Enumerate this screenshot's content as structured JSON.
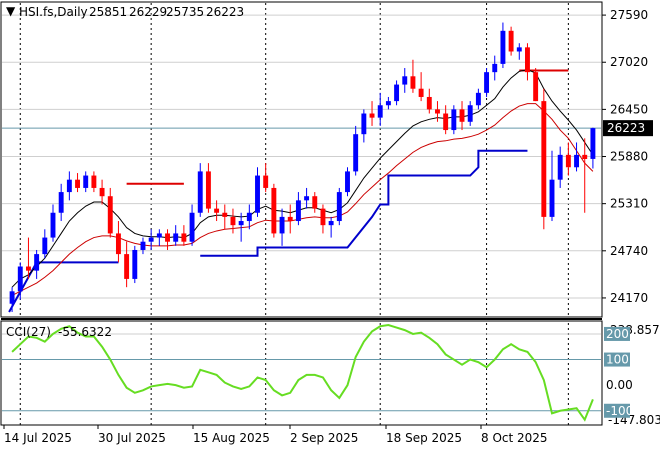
{
  "header": {
    "marker": "▼",
    "symbol": "HSI.fs,Daily",
    "open": "25851",
    "high": "26229",
    "low": "25735",
    "close": "26223"
  },
  "indicator": {
    "label": "CCI(27)",
    "value": "-55.6322",
    "upper_scale": "238.8572",
    "lower_scale": "-147.8038",
    "ticks": [
      {
        "label": "200",
        "boxed": true
      },
      {
        "label": "100",
        "boxed": true
      },
      {
        "label": "0.00",
        "boxed": false
      },
      {
        "label": "-100",
        "boxed": true
      }
    ]
  },
  "price_axis": {
    "ticks": [
      "27590",
      "27020",
      "26450",
      "25880",
      "25310",
      "24740",
      "24170"
    ],
    "current": "26223"
  },
  "date_axis": [
    "14 Jul 2025",
    "30 Jul 2025",
    "15 Aug 2025",
    "2 Sep 2025",
    "18 Sep 2025",
    "8 Oct 2025"
  ],
  "colors": {
    "bull": "#0000ff",
    "bear": "#ff0000",
    "ema_fast": "#000000",
    "ema_slow": "#cc0000",
    "support": "#0000cc",
    "resistance": "#dd0000",
    "cci": "#66dd22",
    "current_line": "#6699aa",
    "label_bg": "#000000"
  },
  "chart_data": [
    {
      "type": "candlestick",
      "title": "HSI.fs,Daily",
      "ylim": [
        24000,
        27700
      ],
      "y_ticks": [
        27590,
        27020,
        26450,
        25880,
        25310,
        24740,
        24170
      ],
      "current_price": 26223,
      "candles": [
        [
          24100,
          24300,
          24000,
          24250
        ],
        [
          24250,
          24600,
          24150,
          24550
        ],
        [
          24550,
          24900,
          24400,
          24500
        ],
        [
          24500,
          24750,
          24400,
          24700
        ],
        [
          24700,
          25000,
          24650,
          24900
        ],
        [
          24900,
          25300,
          24850,
          25200
        ],
        [
          25200,
          25550,
          25100,
          25450
        ],
        [
          25450,
          25700,
          25350,
          25600
        ],
        [
          25600,
          25680,
          25450,
          25500
        ],
        [
          25500,
          25700,
          25450,
          25650
        ],
        [
          25650,
          25700,
          25450,
          25500
        ],
        [
          25500,
          25600,
          25300,
          25400
        ],
        [
          25400,
          25500,
          24900,
          24950
        ],
        [
          24950,
          25100,
          24600,
          24700
        ],
        [
          24700,
          24850,
          24300,
          24400
        ],
        [
          24400,
          24800,
          24350,
          24750
        ],
        [
          24750,
          24900,
          24700,
          24850
        ],
        [
          24850,
          25000,
          24750,
          24900
        ],
        [
          24900,
          25000,
          24800,
          24950
        ],
        [
          24950,
          25000,
          24750,
          24850
        ],
        [
          24850,
          25050,
          24800,
          24950
        ],
        [
          24950,
          25050,
          24800,
          24850
        ],
        [
          24850,
          25300,
          24800,
          25200
        ],
        [
          25200,
          25800,
          25150,
          25700
        ],
        [
          25700,
          25800,
          25200,
          25250
        ],
        [
          25250,
          25350,
          25100,
          25200
        ],
        [
          25200,
          25300,
          25000,
          25150
        ],
        [
          25150,
          25250,
          24950,
          25050
        ],
        [
          25050,
          25200,
          24850,
          25100
        ],
        [
          25100,
          25300,
          25000,
          25200
        ],
        [
          25200,
          25750,
          25150,
          25650
        ],
        [
          25650,
          25800,
          25450,
          25500
        ],
        [
          25500,
          25550,
          24900,
          24950
        ],
        [
          24950,
          25250,
          24800,
          25150
        ],
        [
          25150,
          25300,
          24950,
          25100
        ],
        [
          25100,
          25450,
          25050,
          25350
        ],
        [
          25350,
          25500,
          25250,
          25400
        ],
        [
          25400,
          25450,
          25200,
          25250
        ],
        [
          25250,
          25300,
          24950,
          25050
        ],
        [
          25050,
          25150,
          24900,
          25100
        ],
        [
          25100,
          25500,
          25050,
          25450
        ],
        [
          25450,
          25750,
          25400,
          25700
        ],
        [
          25700,
          26250,
          25650,
          26150
        ],
        [
          26150,
          26450,
          26050,
          26400
        ],
        [
          26400,
          26550,
          26250,
          26350
        ],
        [
          26350,
          26650,
          26250,
          26500
        ],
        [
          26500,
          26600,
          26450,
          26550
        ],
        [
          26550,
          26800,
          26500,
          26750
        ],
        [
          26750,
          26950,
          26650,
          26850
        ],
        [
          26850,
          27050,
          26650,
          26700
        ],
        [
          26700,
          26900,
          26550,
          26600
        ],
        [
          26600,
          26700,
          26400,
          26450
        ],
        [
          26450,
          26550,
          26300,
          26400
        ],
        [
          26400,
          26500,
          26150,
          26200
        ],
        [
          26200,
          26500,
          26150,
          26450
        ],
        [
          26450,
          26550,
          26200,
          26300
        ],
        [
          26300,
          26550,
          26250,
          26500
        ],
        [
          26500,
          26700,
          26450,
          26650
        ],
        [
          26650,
          26950,
          26600,
          26900
        ],
        [
          26900,
          27100,
          26800,
          27000
        ],
        [
          27000,
          27500,
          26950,
          27400
        ],
        [
          27400,
          27450,
          27100,
          27150
        ],
        [
          27150,
          27250,
          27050,
          27200
        ],
        [
          27200,
          27250,
          26800,
          26900
        ],
        [
          26900,
          26950,
          26550,
          26550
        ],
        [
          26550,
          26700,
          25000,
          25150
        ],
        [
          25150,
          25950,
          25100,
          25600
        ],
        [
          25600,
          26000,
          25500,
          25900
        ],
        [
          25900,
          26050,
          25650,
          25750
        ],
        [
          25750,
          26050,
          25700,
          25900
        ],
        [
          25900,
          26100,
          25200,
          25850
        ],
        [
          25851,
          26229,
          25735,
          26223
        ]
      ],
      "ema_fast": [
        24300,
        24400,
        24450,
        24550,
        24650,
        24800,
        24950,
        25100,
        25200,
        25280,
        25330,
        25330,
        25250,
        25150,
        25020,
        24950,
        24920,
        24910,
        24910,
        24900,
        24910,
        24900,
        24950,
        25080,
        25150,
        25170,
        25170,
        25160,
        25150,
        25160,
        25240,
        25280,
        25230,
        25220,
        25200,
        25230,
        25260,
        25260,
        25230,
        25200,
        25240,
        25320,
        25470,
        25620,
        25740,
        25860,
        25960,
        26060,
        26160,
        26250,
        26300,
        26330,
        26350,
        26340,
        26360,
        26360,
        26380,
        26420,
        26500,
        26580,
        26720,
        26830,
        26910,
        26930,
        26890,
        26700,
        26550,
        26430,
        26320,
        26200,
        26050,
        25900
      ],
      "ema_slow": [
        24200,
        24250,
        24300,
        24350,
        24420,
        24500,
        24600,
        24700,
        24780,
        24850,
        24900,
        24920,
        24920,
        24900,
        24860,
        24830,
        24810,
        24800,
        24800,
        24800,
        24810,
        24810,
        24830,
        24900,
        24950,
        24980,
        25000,
        25010,
        25020,
        25030,
        25080,
        25110,
        25100,
        25100,
        25100,
        25120,
        25140,
        25150,
        25140,
        25140,
        25160,
        25210,
        25310,
        25420,
        25510,
        25600,
        25680,
        25770,
        25850,
        25930,
        25990,
        26030,
        26060,
        26070,
        26090,
        26100,
        26120,
        26150,
        26200,
        26260,
        26350,
        26430,
        26490,
        26520,
        26520,
        26430,
        26330,
        26200,
        26100,
        25950,
        25800,
        25700
      ]
    },
    {
      "type": "line",
      "title": "CCI(27)",
      "ylim": [
        -147.8038,
        238.8572
      ],
      "y_ticks": [
        200,
        100,
        0,
        -100
      ],
      "values": [
        130,
        160,
        190,
        185,
        170,
        200,
        220,
        230,
        205,
        190,
        190,
        150,
        100,
        40,
        -10,
        -30,
        -20,
        -5,
        0,
        5,
        0,
        -10,
        -5,
        60,
        50,
        40,
        10,
        -5,
        -15,
        -5,
        30,
        20,
        -20,
        -40,
        -30,
        20,
        40,
        40,
        30,
        -20,
        -50,
        0,
        110,
        170,
        210,
        230,
        235,
        225,
        215,
        200,
        205,
        185,
        160,
        120,
        100,
        80,
        100,
        90,
        70,
        100,
        140,
        160,
        140,
        130,
        90,
        20,
        -110,
        -100,
        -95,
        -90,
        -135,
        -55.6322
      ]
    }
  ]
}
